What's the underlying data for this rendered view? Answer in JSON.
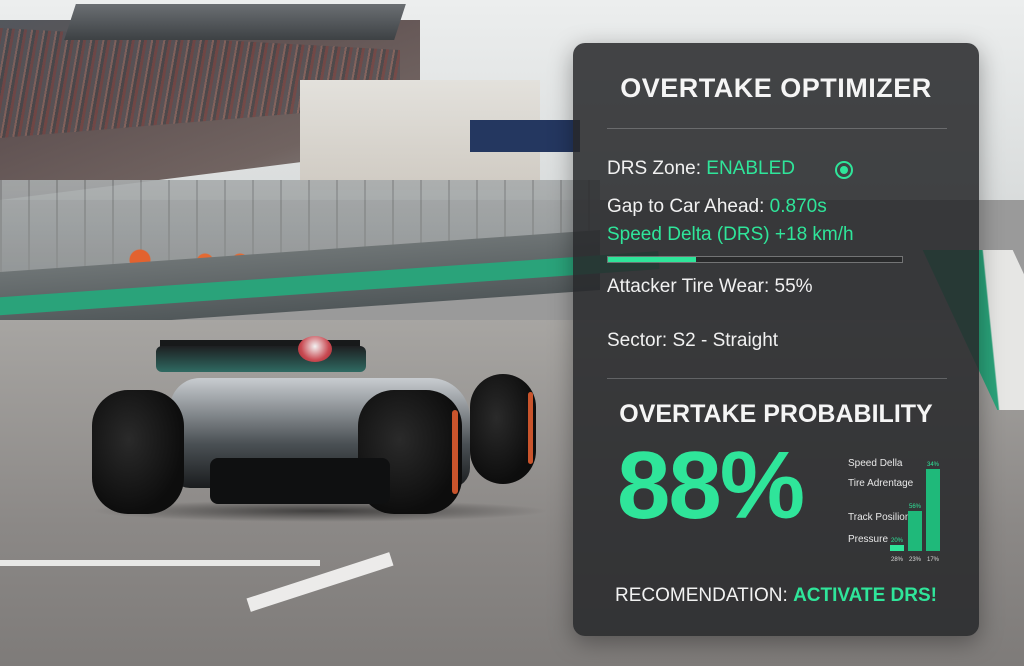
{
  "hud": {
    "title": "OVERTAKE OPTIMIZER",
    "drs": {
      "label": "DRS Zone:",
      "value": "ENABLED",
      "indicator": "radio-active-icon"
    },
    "gap": {
      "label": "Gap to Car Ahead:",
      "value": "0.870s"
    },
    "speed_delta": {
      "label": "Speed Delta (DRS) +18 km/h",
      "progress": 0.3
    },
    "tire_wear": {
      "text": "Attacker Tire Wear: 55%"
    },
    "sector": {
      "text": "Sector: S2 - Straight"
    },
    "probability": {
      "title": "OVERTAKE PROBABILITY",
      "value": "88%"
    },
    "factors": [
      "Speed Della",
      "Tire Adrentage",
      "Track Posilion",
      "Pressure"
    ],
    "mini_bars": {
      "bar_value_labels": [
        "20%",
        "56%",
        "34%"
      ],
      "axis_labels": [
        "28%",
        "23%",
        "17%"
      ],
      "levels": [
        0.06,
        0.4,
        0.82
      ]
    },
    "recommendation": {
      "label": "RECOMENDATION:",
      "value": "ACTIVATE DRS!"
    }
  },
  "colors": {
    "accent": "#2fe59a",
    "panel_bg": "#26282a"
  }
}
